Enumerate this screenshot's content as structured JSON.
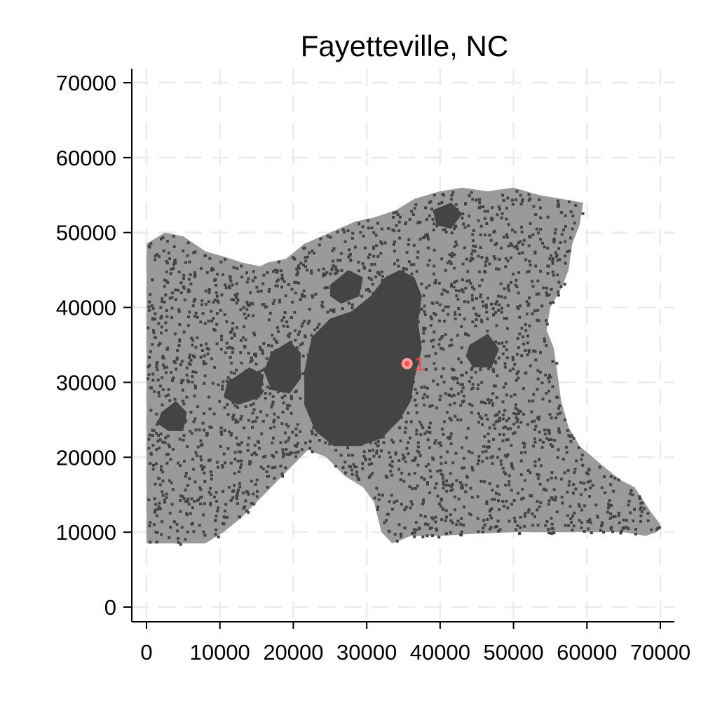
{
  "chart_data": {
    "type": "map",
    "title": "Fayetteville, NC",
    "xlim": [
      0,
      70000
    ],
    "ylim": [
      0,
      70000
    ],
    "x_ticks": [
      0,
      10000,
      20000,
      30000,
      40000,
      50000,
      60000,
      70000
    ],
    "y_ticks": [
      0,
      10000,
      20000,
      30000,
      40000,
      50000,
      60000,
      70000
    ],
    "x_tick_labels": [
      "0",
      "10000",
      "20000",
      "30000",
      "40000",
      "50000",
      "60000",
      "70000"
    ],
    "y_tick_labels": [
      "0",
      "10000",
      "20000",
      "30000",
      "40000",
      "50000",
      "60000",
      "70000"
    ],
    "grid": true,
    "colors": {
      "land": "#9a9a9a",
      "developed": "#444444",
      "marker": "#ff4d4d",
      "grid": "#ebebeb"
    },
    "boundary": [
      [
        0,
        48500
      ],
      [
        2500,
        50000
      ],
      [
        5000,
        49500
      ],
      [
        8000,
        47500
      ],
      [
        11500,
        46500
      ],
      [
        13000,
        46000
      ],
      [
        15500,
        45500
      ],
      [
        16500,
        46000
      ],
      [
        19000,
        46500
      ],
      [
        21500,
        48500
      ],
      [
        25000,
        50000
      ],
      [
        28500,
        51500
      ],
      [
        31000,
        52000
      ],
      [
        34000,
        53000
      ],
      [
        36500,
        54500
      ],
      [
        40000,
        55500
      ],
      [
        43000,
        56000
      ],
      [
        46500,
        55500
      ],
      [
        50000,
        56000
      ],
      [
        53500,
        55000
      ],
      [
        56500,
        54500
      ],
      [
        59500,
        54000
      ],
      [
        59000,
        51000
      ],
      [
        58000,
        48500
      ],
      [
        57500,
        45000
      ],
      [
        56500,
        42500
      ],
      [
        55000,
        40000
      ],
      [
        54500,
        37000
      ],
      [
        55500,
        34500
      ],
      [
        56000,
        31000
      ],
      [
        56500,
        27500
      ],
      [
        57500,
        24000
      ],
      [
        59000,
        21500
      ],
      [
        62000,
        19000
      ],
      [
        64500,
        17000
      ],
      [
        66500,
        16000
      ],
      [
        68500,
        13000
      ],
      [
        70000,
        11000
      ],
      [
        69500,
        10000
      ],
      [
        68000,
        9500
      ],
      [
        65000,
        10000
      ],
      [
        60000,
        10000
      ],
      [
        55000,
        10000
      ],
      [
        50000,
        10000
      ],
      [
        45000,
        9800
      ],
      [
        40000,
        9500
      ],
      [
        36000,
        9500
      ],
      [
        33500,
        8500
      ],
      [
        32000,
        10000
      ],
      [
        31000,
        14000
      ],
      [
        29500,
        16000
      ],
      [
        27000,
        17500
      ],
      [
        24500,
        20000
      ],
      [
        22000,
        21000
      ],
      [
        20500,
        19500
      ],
      [
        18000,
        17000
      ],
      [
        15500,
        14500
      ],
      [
        13000,
        12000
      ],
      [
        10500,
        10000
      ],
      [
        8000,
        8500
      ],
      [
        5000,
        8500
      ],
      [
        2500,
        8500
      ],
      [
        0,
        8500
      ]
    ],
    "developed_areas": [
      [
        [
          22500,
          36000
        ],
        [
          25000,
          38500
        ],
        [
          28000,
          39500
        ],
        [
          30500,
          41500
        ],
        [
          32500,
          44000
        ],
        [
          34500,
          45000
        ],
        [
          36500,
          44000
        ],
        [
          37500,
          41500
        ],
        [
          37000,
          38000
        ],
        [
          37500,
          34500
        ],
        [
          36500,
          30500
        ],
        [
          36000,
          27500
        ],
        [
          34500,
          25000
        ],
        [
          32000,
          22500
        ],
        [
          29000,
          21500
        ],
        [
          25500,
          21500
        ],
        [
          23000,
          23500
        ],
        [
          21500,
          27000
        ],
        [
          21500,
          31500
        ]
      ],
      [
        [
          17000,
          34000
        ],
        [
          19500,
          35500
        ],
        [
          21000,
          34000
        ],
        [
          21000,
          30500
        ],
        [
          19500,
          28500
        ],
        [
          17000,
          29000
        ],
        [
          16000,
          31500
        ]
      ],
      [
        [
          25000,
          43000
        ],
        [
          27500,
          45000
        ],
        [
          29500,
          44000
        ],
        [
          29000,
          41500
        ],
        [
          26500,
          40500
        ],
        [
          25000,
          41500
        ]
      ],
      [
        [
          2000,
          26000
        ],
        [
          4000,
          27500
        ],
        [
          5500,
          26000
        ],
        [
          5000,
          23500
        ],
        [
          3000,
          23500
        ],
        [
          1500,
          24500
        ]
      ],
      [
        [
          11000,
          30000
        ],
        [
          14000,
          32000
        ],
        [
          16000,
          31000
        ],
        [
          15500,
          28000
        ],
        [
          12500,
          27000
        ],
        [
          10500,
          28000
        ]
      ],
      [
        [
          39000,
          53000
        ],
        [
          41500,
          54000
        ],
        [
          43000,
          52500
        ],
        [
          41500,
          50500
        ],
        [
          39500,
          51000
        ]
      ],
      [
        [
          44000,
          35000
        ],
        [
          46500,
          36500
        ],
        [
          48000,
          34500
        ],
        [
          47000,
          32000
        ],
        [
          44500,
          32000
        ],
        [
          43500,
          33500
        ]
      ]
    ],
    "markers": [
      {
        "label": "1",
        "x": 35500,
        "y": 32500
      }
    ]
  }
}
